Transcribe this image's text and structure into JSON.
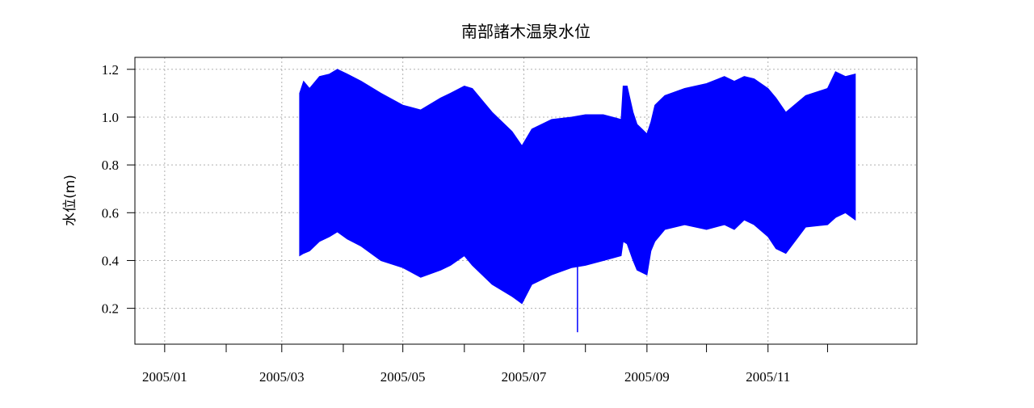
{
  "chart_data": {
    "type": "area",
    "title": "南部諸木温泉水位",
    "xlabel": "",
    "ylabel": "水位(m)",
    "ylim": [
      0.05,
      1.25
    ],
    "xlim": [
      "2004-12-17",
      "2006-01-15"
    ],
    "grid": true,
    "x_ticks": [
      {
        "date": "2005-01-01",
        "label": "2005/01"
      },
      {
        "date": "2005-02-01",
        "label": ""
      },
      {
        "date": "2005-03-01",
        "label": "2005/03"
      },
      {
        "date": "2005-04-01",
        "label": ""
      },
      {
        "date": "2005-05-01",
        "label": "2005/05"
      },
      {
        "date": "2005-06-01",
        "label": ""
      },
      {
        "date": "2005-07-01",
        "label": "2005/07"
      },
      {
        "date": "2005-08-01",
        "label": ""
      },
      {
        "date": "2005-09-01",
        "label": "2005/09"
      },
      {
        "date": "2005-10-01",
        "label": ""
      },
      {
        "date": "2005-11-01",
        "label": "2005/11"
      },
      {
        "date": "2005-12-01",
        "label": ""
      }
    ],
    "y_ticks": [
      {
        "value": 0.2,
        "label": "0.2"
      },
      {
        "value": 0.4,
        "label": "0.4"
      },
      {
        "value": 0.6,
        "label": "0.6"
      },
      {
        "value": 0.8,
        "label": "0.8"
      },
      {
        "value": 1.0,
        "label": "1.0"
      },
      {
        "value": 1.2,
        "label": "1.2"
      }
    ],
    "series": [
      {
        "color": "#0000ff",
        "x": [
          "2005-03-10",
          "2005-03-12",
          "2005-03-15",
          "2005-03-20",
          "2005-03-25",
          "2005-03-29",
          "2005-04-03",
          "2005-04-10",
          "2005-04-20",
          "2005-05-01",
          "2005-05-10",
          "2005-05-20",
          "2005-05-25",
          "2005-06-01",
          "2005-06-05",
          "2005-06-15",
          "2005-06-25",
          "2005-06-30",
          "2005-07-05",
          "2005-07-15",
          "2005-07-25",
          "2005-08-01",
          "2005-08-10",
          "2005-08-19",
          "2005-08-20",
          "2005-08-22",
          "2005-08-25",
          "2005-08-27",
          "2005-09-01",
          "2005-09-03",
          "2005-09-05",
          "2005-09-10",
          "2005-09-20",
          "2005-10-01",
          "2005-10-10",
          "2005-10-15",
          "2005-10-20",
          "2005-10-25",
          "2005-11-01",
          "2005-11-05",
          "2005-11-10",
          "2005-11-20",
          "2005-12-01",
          "2005-12-05",
          "2005-12-10",
          "2005-12-15"
        ],
        "max": [
          1.1,
          1.15,
          1.12,
          1.17,
          1.18,
          1.2,
          1.18,
          1.15,
          1.1,
          1.05,
          1.03,
          1.08,
          1.1,
          1.13,
          1.12,
          1.02,
          0.94,
          0.88,
          0.95,
          0.99,
          1.0,
          1.01,
          1.01,
          0.99,
          1.13,
          1.13,
          1.02,
          0.97,
          0.93,
          0.98,
          1.05,
          1.09,
          1.12,
          1.14,
          1.17,
          1.15,
          1.17,
          1.16,
          1.12,
          1.08,
          1.02,
          1.09,
          1.12,
          1.19,
          1.17,
          1.18
        ],
        "min": [
          0.42,
          0.43,
          0.44,
          0.48,
          0.5,
          0.52,
          0.49,
          0.46,
          0.4,
          0.37,
          0.33,
          0.36,
          0.38,
          0.42,
          0.38,
          0.3,
          0.25,
          0.22,
          0.3,
          0.34,
          0.37,
          0.38,
          0.4,
          0.42,
          0.48,
          0.47,
          0.4,
          0.36,
          0.34,
          0.44,
          0.48,
          0.53,
          0.55,
          0.53,
          0.55,
          0.53,
          0.57,
          0.55,
          0.5,
          0.45,
          0.43,
          0.54,
          0.55,
          0.58,
          0.6,
          0.57
        ]
      }
    ],
    "annotations": [
      {
        "x": "2005-07-28",
        "y": 0.1,
        "note": "single low spike"
      }
    ]
  }
}
